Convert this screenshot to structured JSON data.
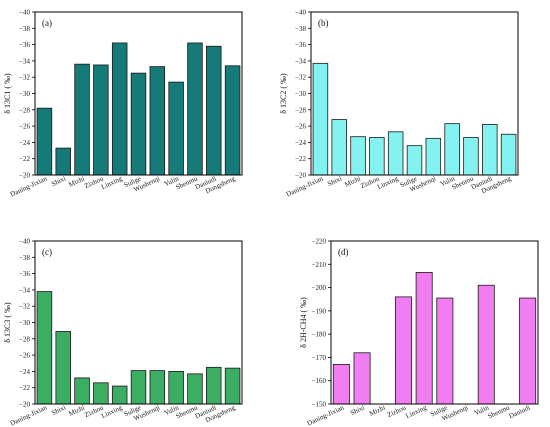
{
  "chart_data": [
    {
      "type": "bar",
      "panel_label": "(a)",
      "ylabel": "δ 13C1 ( ‰)",
      "ylim": [
        -20,
        -40
      ],
      "yticks": [
        -20,
        -22,
        -24,
        -26,
        -28,
        -30,
        -32,
        -34,
        -36,
        -38,
        -40
      ],
      "categories": [
        "Daning-Jixian",
        "Shixi",
        "Mizhi",
        "Zizhou",
        "Linxing",
        "Sulige",
        "Wushenqi",
        "Yulin",
        "Shenmu",
        "Daniudi",
        "Dongsheng"
      ],
      "values": [
        -28.2,
        -23.3,
        -33.6,
        -33.5,
        -36.2,
        -32.5,
        -33.3,
        -31.4,
        -36.2,
        -35.8,
        -33.4
      ],
      "bar_color": "#157a78",
      "grid": false
    },
    {
      "type": "bar",
      "panel_label": "(b)",
      "ylabel": "δ 13C2 ( ‰)",
      "ylim": [
        -20,
        -40
      ],
      "yticks": [
        -20,
        -22,
        -24,
        -26,
        -28,
        -30,
        -32,
        -34,
        -36,
        -38,
        -40
      ],
      "categories": [
        "Daning-Jixian",
        "Shixi",
        "Mizhi",
        "Zizhou",
        "Linxing",
        "Sulige",
        "Wushenqi",
        "Yulin",
        "Shenmu",
        "Daniudi",
        "Dongsheng"
      ],
      "values": [
        -33.7,
        -26.8,
        -24.7,
        -24.6,
        -25.3,
        -23.6,
        -24.5,
        -26.3,
        -24.6,
        -26.2,
        -25.0
      ],
      "bar_color": "#84f2f0",
      "grid": false
    },
    {
      "type": "bar",
      "panel_label": "(c)",
      "ylabel": "δ 13C3 ( ‰)",
      "ylim": [
        -20,
        -40
      ],
      "yticks": [
        -20,
        -22,
        -24,
        -26,
        -28,
        -30,
        -32,
        -34,
        -36,
        -38,
        -40
      ],
      "categories": [
        "Daning-Jixian",
        "Shixi",
        "Mizhi",
        "Zizhou",
        "Linxing",
        "Sulige",
        "Wushenqi",
        "Yulin",
        "Shenmu",
        "Daniudi",
        "Dongsheng"
      ],
      "values": [
        -33.8,
        -28.9,
        -23.2,
        -22.6,
        -22.2,
        -24.1,
        -24.1,
        -24.0,
        -23.7,
        -24.5,
        -24.4
      ],
      "bar_color": "#3cae63",
      "grid": false
    },
    {
      "type": "bar",
      "panel_label": "(d)",
      "ylabel": "δ 2H-CH4 ( ‰)",
      "ylim": [
        -150,
        -220
      ],
      "yticks": [
        -150,
        -160,
        -170,
        -180,
        -190,
        -200,
        -210,
        -220
      ],
      "categories": [
        "Daning-Jixian",
        "Shixi",
        "Mizhi",
        "Zizhou",
        "Linxing",
        "Sulige",
        "Wushenqi",
        "Yulin",
        "Shenmu",
        "Daniudi"
      ],
      "values": [
        -167,
        -172,
        null,
        -196,
        -206.5,
        -195.5,
        null,
        -201,
        null,
        -195.5
      ],
      "bar_color": "#f27df2",
      "grid": false
    }
  ]
}
